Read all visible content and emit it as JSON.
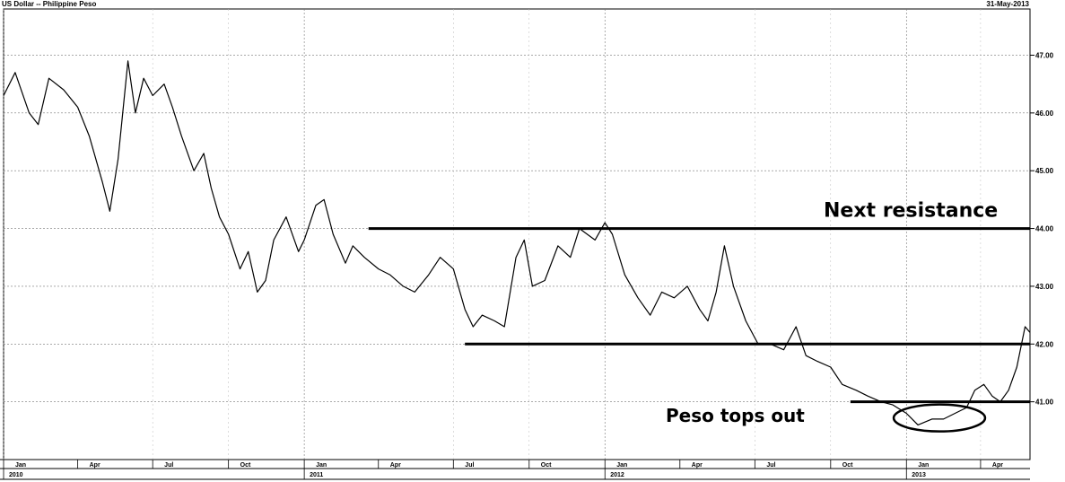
{
  "header": {
    "title": "US Dollar -- Philippine Peso",
    "date": "31-May-2013"
  },
  "chart_data": {
    "type": "line",
    "title": "US Dollar -- Philippine Peso",
    "xlabel": "",
    "ylabel": "",
    "date_label": "31-May-2013",
    "x_range": [
      "2010-01-01",
      "2013-05-31"
    ],
    "ylim": [
      40.0,
      47.8
    ],
    "y_ticks": [
      41.0,
      42.0,
      43.0,
      44.0,
      45.0,
      46.0,
      47.0
    ],
    "y_tick_labels": [
      "41.00",
      "42.00",
      "43.00",
      "44.00",
      "45.00",
      "46.00",
      "47.00"
    ],
    "grid": true,
    "month_ticks": [
      {
        "date": "2010-01-01",
        "label": "Jan"
      },
      {
        "date": "2010-04-01",
        "label": "Apr"
      },
      {
        "date": "2010-07-01",
        "label": "Jul"
      },
      {
        "date": "2010-10-01",
        "label": "Oct"
      },
      {
        "date": "2011-01-01",
        "label": "Jan"
      },
      {
        "date": "2011-04-01",
        "label": "Apr"
      },
      {
        "date": "2011-07-01",
        "label": "Jul"
      },
      {
        "date": "2011-10-01",
        "label": "Oct"
      },
      {
        "date": "2012-01-01",
        "label": "Jan"
      },
      {
        "date": "2012-04-01",
        "label": "Apr"
      },
      {
        "date": "2012-07-01",
        "label": "Jul"
      },
      {
        "date": "2012-10-01",
        "label": "Oct"
      },
      {
        "date": "2013-01-01",
        "label": "Jan"
      },
      {
        "date": "2013-04-01",
        "label": "Apr"
      }
    ],
    "year_ticks": [
      {
        "date": "2010-01-01",
        "label": "2010"
      },
      {
        "date": "2011-01-01",
        "label": "2011"
      },
      {
        "date": "2012-01-01",
        "label": "2012"
      },
      {
        "date": "2013-01-01",
        "label": "2013"
      }
    ],
    "series": [
      {
        "values": [
          [
            "2010-01-01",
            46.3
          ],
          [
            "2010-01-15",
            46.7
          ],
          [
            "2010-02-01",
            46.0
          ],
          [
            "2010-02-12",
            45.8
          ],
          [
            "2010-02-25",
            46.6
          ],
          [
            "2010-03-15",
            46.4
          ],
          [
            "2010-04-01",
            46.1
          ],
          [
            "2010-04-15",
            45.6
          ],
          [
            "2010-05-01",
            44.8
          ],
          [
            "2010-05-10",
            44.3
          ],
          [
            "2010-05-20",
            45.2
          ],
          [
            "2010-06-01",
            46.9
          ],
          [
            "2010-06-10",
            46.0
          ],
          [
            "2010-06-20",
            46.6
          ],
          [
            "2010-07-01",
            46.3
          ],
          [
            "2010-07-15",
            46.5
          ],
          [
            "2010-07-25",
            46.1
          ],
          [
            "2010-08-05",
            45.6
          ],
          [
            "2010-08-20",
            45.0
          ],
          [
            "2010-09-01",
            45.3
          ],
          [
            "2010-09-10",
            44.7
          ],
          [
            "2010-09-20",
            44.2
          ],
          [
            "2010-10-01",
            43.9
          ],
          [
            "2010-10-15",
            43.3
          ],
          [
            "2010-10-25",
            43.6
          ],
          [
            "2010-11-05",
            42.9
          ],
          [
            "2010-11-15",
            43.1
          ],
          [
            "2010-11-25",
            43.8
          ],
          [
            "2010-12-10",
            44.2
          ],
          [
            "2010-12-25",
            43.6
          ],
          [
            "2011-01-01",
            43.8
          ],
          [
            "2011-01-15",
            44.4
          ],
          [
            "2011-01-25",
            44.5
          ],
          [
            "2011-02-05",
            43.9
          ],
          [
            "2011-02-20",
            43.4
          ],
          [
            "2011-03-01",
            43.7
          ],
          [
            "2011-03-15",
            43.5
          ],
          [
            "2011-04-01",
            43.3
          ],
          [
            "2011-04-15",
            43.2
          ],
          [
            "2011-05-01",
            43.0
          ],
          [
            "2011-05-15",
            42.9
          ],
          [
            "2011-06-01",
            43.2
          ],
          [
            "2011-06-15",
            43.5
          ],
          [
            "2011-07-01",
            43.3
          ],
          [
            "2011-07-15",
            42.6
          ],
          [
            "2011-07-25",
            42.3
          ],
          [
            "2011-08-05",
            42.5
          ],
          [
            "2011-08-20",
            42.4
          ],
          [
            "2011-09-01",
            42.3
          ],
          [
            "2011-09-15",
            43.5
          ],
          [
            "2011-09-25",
            43.8
          ],
          [
            "2011-10-05",
            43.0
          ],
          [
            "2011-10-20",
            43.1
          ],
          [
            "2011-11-05",
            43.7
          ],
          [
            "2011-11-20",
            43.5
          ],
          [
            "2011-12-01",
            44.0
          ],
          [
            "2011-12-20",
            43.8
          ],
          [
            "2012-01-01",
            44.1
          ],
          [
            "2012-01-10",
            43.9
          ],
          [
            "2012-01-25",
            43.2
          ],
          [
            "2012-02-10",
            42.8
          ],
          [
            "2012-02-25",
            42.5
          ],
          [
            "2012-03-10",
            42.9
          ],
          [
            "2012-03-25",
            42.8
          ],
          [
            "2012-04-10",
            43.0
          ],
          [
            "2012-04-25",
            42.6
          ],
          [
            "2012-05-05",
            42.4
          ],
          [
            "2012-05-15",
            42.9
          ],
          [
            "2012-05-25",
            43.7
          ],
          [
            "2012-06-05",
            43.0
          ],
          [
            "2012-06-20",
            42.4
          ],
          [
            "2012-07-05",
            42.0
          ],
          [
            "2012-07-20",
            42.0
          ],
          [
            "2012-08-05",
            41.9
          ],
          [
            "2012-08-20",
            42.3
          ],
          [
            "2012-09-01",
            41.8
          ],
          [
            "2012-09-15",
            41.7
          ],
          [
            "2012-10-01",
            41.6
          ],
          [
            "2012-10-15",
            41.3
          ],
          [
            "2012-11-01",
            41.2
          ],
          [
            "2012-11-15",
            41.1
          ],
          [
            "2012-12-01",
            41.0
          ],
          [
            "2012-12-15",
            40.95
          ],
          [
            "2013-01-01",
            40.8
          ],
          [
            "2013-01-15",
            40.6
          ],
          [
            "2013-02-01",
            40.7
          ],
          [
            "2013-02-15",
            40.7
          ],
          [
            "2013-03-01",
            40.8
          ],
          [
            "2013-03-15",
            40.9
          ],
          [
            "2013-03-25",
            41.2
          ],
          [
            "2013-04-05",
            41.3
          ],
          [
            "2013-04-15",
            41.1
          ],
          [
            "2013-04-25",
            41.0
          ],
          [
            "2013-05-05",
            41.2
          ],
          [
            "2013-05-15",
            41.6
          ],
          [
            "2013-05-25",
            42.3
          ],
          [
            "2013-05-31",
            42.2
          ]
        ]
      }
    ],
    "annotations": [
      {
        "type": "hline",
        "y": 44.0,
        "x_start": "2011-03-20",
        "x_end": "2013-05-31"
      },
      {
        "type": "hline",
        "y": 42.0,
        "x_start": "2011-07-15",
        "x_end": "2013-05-31"
      },
      {
        "type": "hline",
        "y": 41.0,
        "x_start": "2012-10-25",
        "x_end": "2013-05-31"
      },
      {
        "type": "text",
        "text": "Next resistance",
        "y": 44.2
      },
      {
        "type": "text",
        "text": "Peso tops out",
        "y": 40.65
      },
      {
        "type": "ellipse",
        "x_center": "2013-02-10",
        "y_center": 40.72,
        "x_start": "2012-12-15",
        "x_end": "2013-04-05"
      }
    ]
  }
}
